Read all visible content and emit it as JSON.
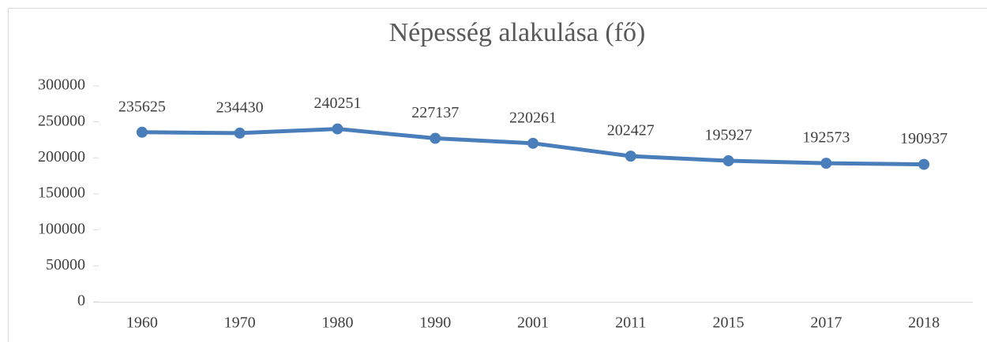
{
  "chart_data": {
    "type": "line",
    "title": "Népesség alakulása (fő)",
    "categories": [
      "1960",
      "1970",
      "1980",
      "1990",
      "2001",
      "2011",
      "2015",
      "2017",
      "2018"
    ],
    "series": [
      {
        "name": "Népesség",
        "color": "#4a7ebb",
        "values": [
          235625,
          234430,
          240251,
          227137,
          220261,
          202427,
          195927,
          192573,
          190937
        ]
      }
    ],
    "ylim": [
      0,
      300000
    ],
    "yticks": [
      0,
      50000,
      100000,
      150000,
      200000,
      250000,
      300000
    ],
    "grid": false
  }
}
